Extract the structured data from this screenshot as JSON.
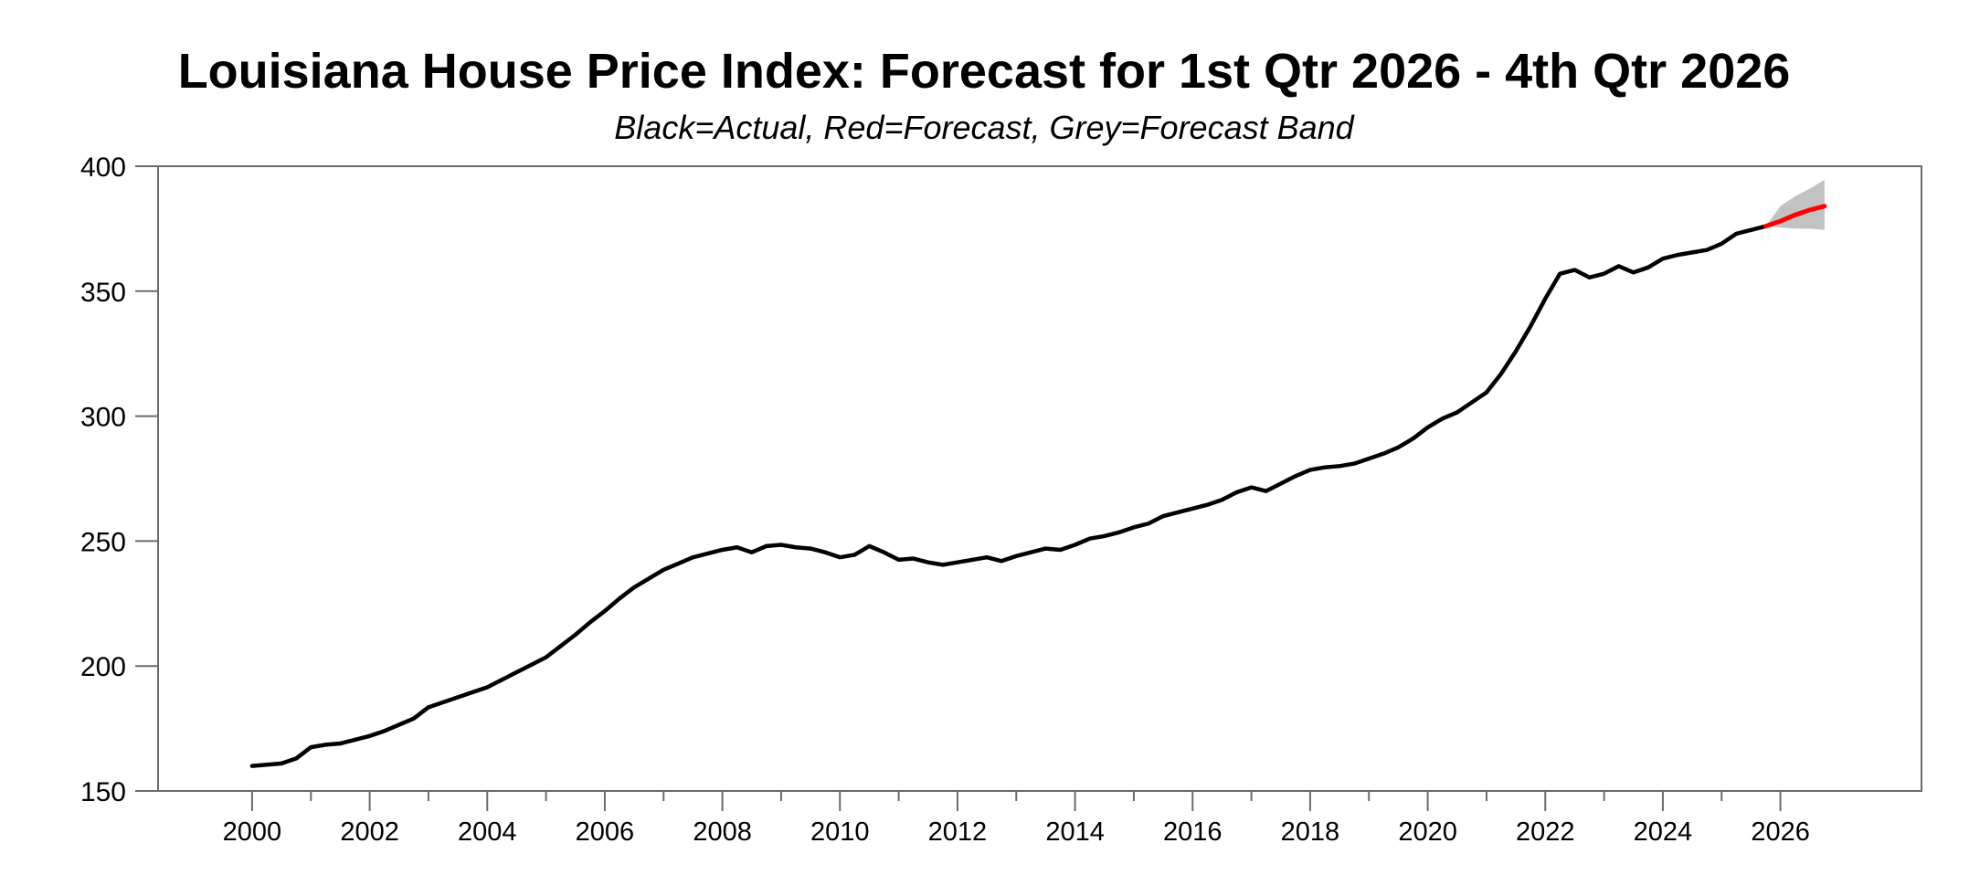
{
  "header": {
    "title": "Louisiana House Price Index: Forecast for 1st Qtr 2026 - 4th Qtr 2026",
    "subtitle": "Black=Actual, Red=Forecast, Grey=Forecast Band"
  },
  "chart_data": {
    "type": "line",
    "title": "Louisiana House Price Index: Forecast for 1st Qtr 2026 - 4th Qtr 2026",
    "subtitle": "Black=Actual, Red=Forecast, Grey=Forecast Band",
    "xlabel": "",
    "ylabel": "",
    "xlim": [
      1998.4,
      2028.4
    ],
    "ylim": [
      150,
      400
    ],
    "grid": false,
    "legend_position": "none",
    "colors": {
      "actual": "#000000",
      "forecast": "#ff0000",
      "band": "#c2c2c2",
      "frame": "#6b6b6b",
      "text": "#000000",
      "background": "#ffffff"
    },
    "x_axis": {
      "major_ticks": [
        2000,
        2002,
        2004,
        2006,
        2008,
        2010,
        2012,
        2014,
        2016,
        2018,
        2020,
        2022,
        2024,
        2026
      ],
      "major_labels": [
        "2000",
        "2002",
        "2004",
        "2006",
        "2008",
        "2010",
        "2012",
        "2014",
        "2016",
        "2018",
        "2020",
        "2022",
        "2024",
        "2026"
      ],
      "minor_ticks": [
        2001,
        2003,
        2005,
        2007,
        2009,
        2011,
        2013,
        2015,
        2017,
        2019,
        2021,
        2023,
        2025
      ]
    },
    "y_axis": {
      "ticks": [
        150,
        200,
        250,
        300,
        350,
        400
      ],
      "labels": [
        "150",
        "200",
        "250",
        "300",
        "350",
        "400"
      ]
    },
    "series": [
      {
        "name": "Actual",
        "color_key": "actual",
        "width": 4.5,
        "x_start": 2000.0,
        "x_step": 0.25,
        "values": [
          160,
          160.5,
          161,
          163,
          167.5,
          168.5,
          169,
          170.5,
          172,
          174,
          176.5,
          179,
          183.5,
          185.5,
          187.5,
          189.5,
          191.5,
          194.5,
          197.5,
          200.5,
          203.5,
          208,
          212.5,
          217.5,
          222,
          227,
          231.5,
          235,
          238.5,
          241,
          243.5,
          245,
          246.5,
          247.5,
          245.5,
          248,
          248.5,
          247.5,
          247,
          245.5,
          243.5,
          244.5,
          248,
          245.5,
          242.5,
          243,
          241.5,
          240.5,
          241.5,
          242.5,
          243.5,
          242,
          244,
          245.5,
          247,
          246.5,
          248.5,
          251,
          252,
          253.5,
          255.5,
          257,
          260,
          261.5,
          263,
          264.5,
          266.5,
          269.5,
          271.5,
          270,
          273,
          276,
          278.5,
          279.5,
          280,
          281,
          283,
          285,
          287.5,
          291,
          295.5,
          299,
          301.5,
          305.5,
          309.5,
          317,
          326,
          336,
          347,
          357,
          358.5,
          355.5,
          357,
          360,
          357.5,
          359.5,
          363,
          364.5,
          365.5,
          366.5,
          369,
          373,
          374.5,
          376
        ]
      },
      {
        "name": "Forecast",
        "color_key": "forecast",
        "width": 5,
        "x": [
          2025.75,
          2026.0,
          2026.25,
          2026.5,
          2026.75
        ],
        "values": [
          376,
          378,
          380.5,
          382.5,
          384
        ]
      }
    ],
    "band": {
      "name": "Forecast Band",
      "color_key": "band",
      "x": [
        2025.75,
        2026.0,
        2026.25,
        2026.5,
        2026.75
      ],
      "low": [
        376,
        375.5,
        375,
        375,
        374.5
      ],
      "high": [
        376,
        384,
        388,
        391,
        394.5
      ]
    }
  }
}
